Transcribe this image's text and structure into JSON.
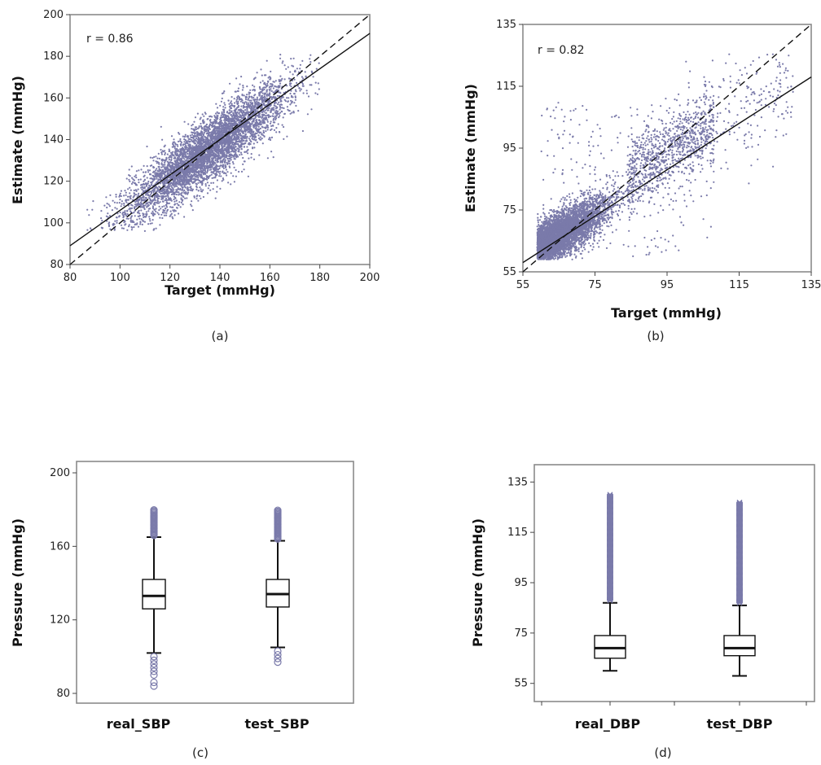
{
  "colors": {
    "point": "#7a7aaa",
    "box_line": "#111111",
    "frame": "#8a8a8a"
  },
  "chart_data": [
    {
      "type": "scatter",
      "caption": "(a)",
      "xlabel": "Target (mmHg)",
      "ylabel": "Estimate (mmHg)",
      "xlim": [
        80,
        200
      ],
      "ylim": [
        80,
        200
      ],
      "xticks": [
        80,
        100,
        120,
        140,
        160,
        180,
        200
      ],
      "yticks": [
        80,
        100,
        120,
        140,
        160,
        180,
        200
      ],
      "annotation": "r = 0.86",
      "r": 0.86,
      "fit_line": {
        "style": "solid",
        "x": [
          80,
          200
        ],
        "y": [
          89,
          191
        ]
      },
      "identity_line": {
        "style": "dashed",
        "x": [
          80,
          200
        ],
        "y": [
          80,
          200
        ]
      },
      "points_summary": {
        "x_range": [
          85,
          180
        ],
        "y_range": [
          95,
          180
        ],
        "mean_x": 135,
        "mean_y": 135,
        "approx_count": "thousands"
      }
    },
    {
      "type": "scatter",
      "caption": "(b)",
      "xlabel": "Target (mmHg)",
      "ylabel": "Estimate (mmHg)",
      "xlim": [
        55,
        135
      ],
      "ylim": [
        55,
        135
      ],
      "xticks": [
        55,
        75,
        95,
        115,
        135
      ],
      "yticks": [
        55,
        75,
        95,
        115,
        135
      ],
      "annotation": "r = 0.82",
      "r": 0.82,
      "fit_line": {
        "style": "solid",
        "x": [
          55,
          135
        ],
        "y": [
          58,
          118
        ]
      },
      "identity_line": {
        "style": "dashed",
        "x": [
          55,
          135
        ],
        "y": [
          55,
          135
        ]
      },
      "points_summary": {
        "x_range": [
          59,
          130
        ],
        "y_range": [
          59,
          126
        ],
        "dense_region": {
          "x": [
            59,
            85
          ],
          "y": [
            60,
            82
          ]
        },
        "approx_count": "thousands"
      }
    },
    {
      "type": "boxplot",
      "caption": "(c)",
      "ylabel": "Pressure (mmHg)",
      "ylim": [
        80,
        200
      ],
      "yticks": [
        80,
        120,
        160,
        200
      ],
      "categories": [
        "real_SBP",
        "test_SBP"
      ],
      "boxes": [
        {
          "name": "real_SBP",
          "whisker_low": 102,
          "q1": 126,
          "median": 133,
          "q3": 142,
          "whisker_high": 165,
          "outliers_high": [
            166,
            168,
            170,
            172,
            174,
            176,
            178,
            180
          ],
          "outliers_low": [
            100,
            98,
            96,
            94,
            92,
            90,
            86,
            84
          ]
        },
        {
          "name": "test_SBP",
          "whisker_low": 105,
          "q1": 127,
          "median": 134,
          "q3": 142,
          "whisker_high": 163,
          "outliers_high": [
            164,
            166,
            168,
            170,
            172,
            174,
            176,
            178,
            180
          ],
          "outliers_low": [
            103,
            101,
            99,
            97
          ]
        }
      ]
    },
    {
      "type": "boxplot",
      "caption": "(d)",
      "ylabel": "Pressure (mmHg)",
      "ylim": [
        52,
        138
      ],
      "yticks": [
        55,
        75,
        95,
        115,
        135
      ],
      "categories": [
        "real_DBP",
        "test_DBP"
      ],
      "boxes": [
        {
          "name": "real_DBP",
          "whisker_low": 60,
          "q1": 65,
          "median": 69,
          "q3": 74,
          "whisker_high": 87,
          "outliers_range": [
            88,
            130
          ]
        },
        {
          "name": "test_DBP",
          "whisker_low": 58,
          "q1": 66,
          "median": 69,
          "q3": 74,
          "whisker_high": 86,
          "outliers_range": [
            87,
            127
          ]
        }
      ]
    }
  ]
}
